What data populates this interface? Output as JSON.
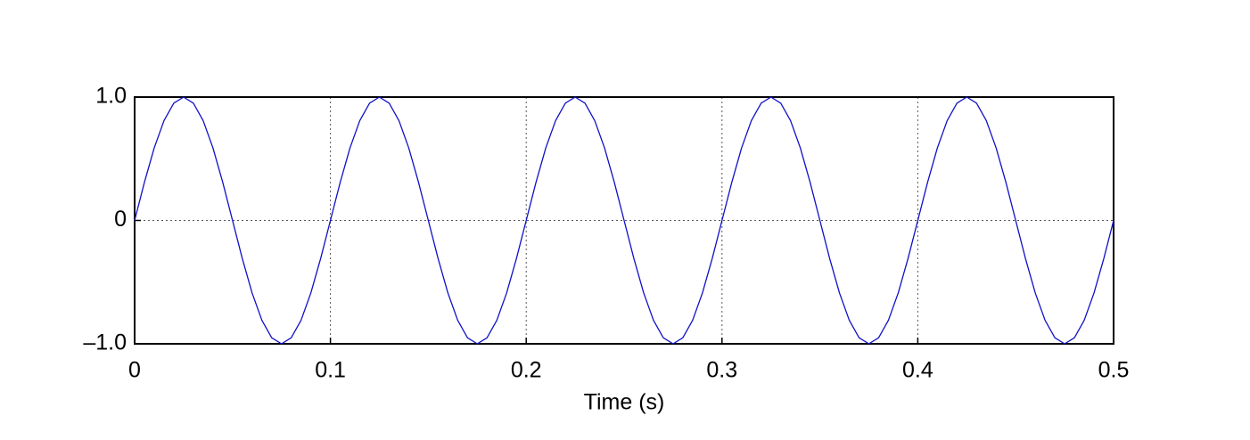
{
  "chart_data": {
    "type": "line",
    "xlabel": "Time (s)",
    "color": "#1010c8",
    "grid": true,
    "x": [
      0,
      0.005,
      0.01,
      0.015,
      0.02,
      0.025,
      0.03,
      0.035,
      0.04,
      0.045,
      0.05,
      0.055,
      0.06,
      0.065,
      0.07,
      0.075,
      0.08,
      0.085,
      0.09,
      0.095,
      0.1,
      0.105,
      0.11,
      0.115,
      0.12,
      0.125,
      0.13,
      0.135,
      0.14,
      0.145,
      0.15,
      0.155,
      0.16,
      0.165,
      0.17,
      0.175,
      0.18,
      0.185,
      0.19,
      0.195,
      0.2,
      0.205,
      0.21,
      0.215,
      0.22,
      0.225,
      0.23,
      0.235,
      0.24,
      0.245,
      0.25,
      0.255,
      0.26,
      0.265,
      0.27,
      0.275,
      0.28,
      0.285,
      0.29,
      0.295,
      0.3,
      0.305,
      0.31,
      0.315,
      0.32,
      0.325,
      0.33,
      0.335,
      0.34,
      0.345,
      0.35,
      0.355,
      0.36,
      0.365,
      0.37,
      0.375,
      0.38,
      0.385,
      0.39,
      0.395,
      0.4,
      0.405,
      0.41,
      0.415,
      0.42,
      0.425,
      0.43,
      0.435,
      0.44,
      0.445,
      0.45,
      0.455,
      0.46,
      0.465,
      0.47,
      0.475,
      0.48,
      0.485,
      0.49,
      0.495,
      0.5
    ],
    "values": [
      0,
      0.309,
      0.588,
      0.809,
      0.951,
      1,
      0.951,
      0.809,
      0.588,
      0.309,
      0,
      -0.309,
      -0.588,
      -0.809,
      -0.951,
      -1,
      -0.951,
      -0.809,
      -0.588,
      -0.309,
      0,
      0.309,
      0.588,
      0.809,
      0.951,
      1,
      0.951,
      0.809,
      0.588,
      0.309,
      0,
      -0.309,
      -0.588,
      -0.809,
      -0.951,
      -1,
      -0.951,
      -0.809,
      -0.588,
      -0.309,
      0,
      0.309,
      0.588,
      0.809,
      0.951,
      1,
      0.951,
      0.809,
      0.588,
      0.309,
      0,
      -0.309,
      -0.588,
      -0.809,
      -0.951,
      -1,
      -0.951,
      -0.809,
      -0.588,
      -0.309,
      0,
      0.309,
      0.588,
      0.809,
      0.951,
      1,
      0.951,
      0.809,
      0.588,
      0.309,
      0,
      -0.309,
      -0.588,
      -0.809,
      -0.951,
      -1,
      -0.951,
      -0.809,
      -0.588,
      -0.309,
      0,
      0.309,
      0.588,
      0.809,
      0.951,
      1,
      0.951,
      0.809,
      0.588,
      0.309,
      0,
      -0.309,
      -0.588,
      -0.809,
      -0.951,
      -1,
      -0.951,
      -0.809,
      -0.588,
      -0.309,
      0
    ],
    "xlim": [
      0,
      0.5
    ],
    "xticks": [
      0,
      0.1,
      0.2,
      0.3,
      0.4,
      0.5
    ],
    "ylim": [
      -1,
      1
    ],
    "yticks": [
      {
        "value": -1,
        "label": "–1.0"
      },
      0,
      {
        "value": 1,
        "label": "1.0"
      }
    ]
  }
}
